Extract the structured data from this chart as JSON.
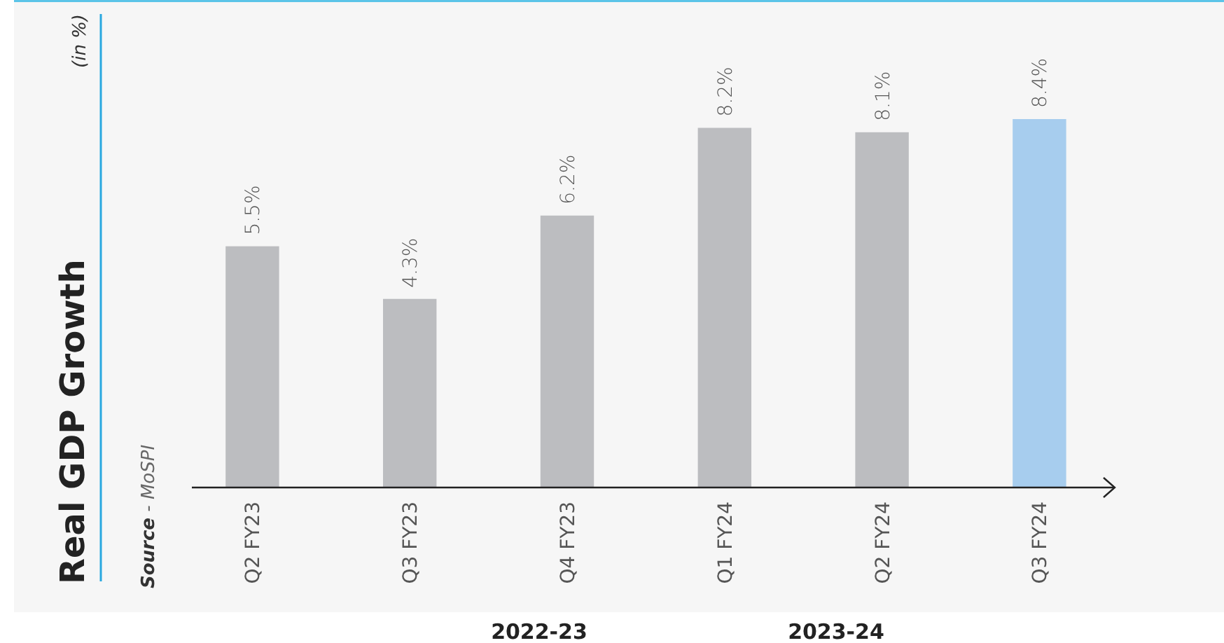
{
  "chart_data": {
    "type": "bar",
    "title": "Real GDP Growth",
    "categories": [
      "Q2 FY23",
      "Q3 FY23",
      "Q4 FY23",
      "Q1 FY24",
      "Q2 FY24",
      "Q3 FY24"
    ],
    "values": [
      5.5,
      4.3,
      6.2,
      8.2,
      8.1,
      8.4
    ],
    "colors": [
      "#bcbdc0",
      "#bcbdc0",
      "#bcbdc0",
      "#bcbdc0",
      "#bcbdc0",
      "#a7cdee"
    ],
    "value_labels": [
      "5.5%",
      "4.3%",
      "6.2%",
      "8.2%",
      "8.1%",
      "8.4%"
    ],
    "annotations": [
      "(in %)",
      "Source - MoSPI",
      "2022-23",
      "2023-24"
    ]
  }
}
